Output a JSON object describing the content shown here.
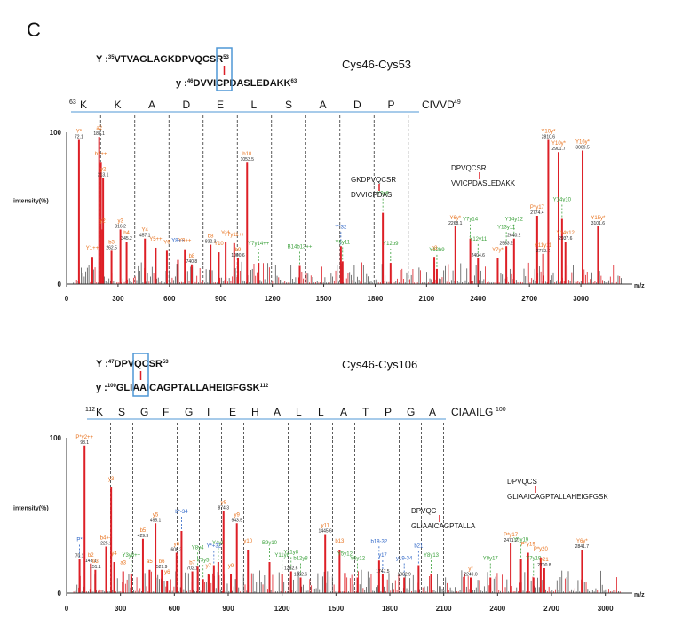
{
  "panel_letter": "C",
  "colors": {
    "red": "#dd1f26",
    "black": "#222222",
    "orange": "#e8731f",
    "blue": "#2c64c6",
    "green": "#3aa03a",
    "axis": "#333333",
    "sequence_line": "#4f97d6"
  },
  "chart_data": [
    {
      "type": "bar",
      "title": "Cys46-Cys53",
      "xlabel": "m/z",
      "ylabel": "intensity(%)",
      "xlim": [
        0,
        3300
      ],
      "ylim": [
        0,
        100
      ],
      "xticks": [
        "0",
        "300",
        "600",
        "900",
        "1200",
        "1500",
        "1800",
        "2100",
        "2400",
        "2700",
        "3000"
      ],
      "yticks": [
        "0",
        "100"
      ],
      "peptide_Y": {
        "label": "Y :",
        "start": "35",
        "sequence": "VTVAGLAGKDPVQCSR",
        "end": "53"
      },
      "peptide_y": {
        "label": "y :",
        "start": "46",
        "sequence": "DVVICPDASLEDAKK",
        "end": "63"
      },
      "ladder": {
        "start": "63",
        "residues": [
          "K",
          "K",
          "A",
          "D",
          "E",
          "L",
          "S",
          "A",
          "D",
          "P",
          "CIVVD"
        ],
        "end": "49"
      },
      "fragment_insets": [
        {
          "lines": [
            "GKDPVQCSR",
            "DVVICPDAS"
          ]
        },
        {
          "lines": [
            "DPVQCSR",
            "VVICPDASLEDAKK"
          ]
        }
      ],
      "annotated_peaks": [
        {
          "mz": 72,
          "intensity": 95,
          "label": "Y*",
          "value": "72.1",
          "color": "orange"
        },
        {
          "mz": 150,
          "intensity": 18,
          "label": "Y1++",
          "value": "",
          "color": "orange"
        },
        {
          "mz": 190,
          "intensity": 97,
          "label": "a2",
          "value": "187.1",
          "color": "orange"
        },
        {
          "mz": 200,
          "intensity": 80,
          "label": "b2++",
          "value": "",
          "color": "orange"
        },
        {
          "mz": 213,
          "intensity": 70,
          "label": "y2",
          "value": "213.1",
          "color": "orange"
        },
        {
          "mz": 210,
          "intensity": 36,
          "label": "y2",
          "value": "",
          "color": "orange"
        },
        {
          "mz": 262,
          "intensity": 22,
          "label": "b3",
          "value": "262.5",
          "color": "orange"
        },
        {
          "mz": 314,
          "intensity": 36,
          "label": "y3",
          "value": "316.2",
          "color": "orange"
        },
        {
          "mz": 350,
          "intensity": 28,
          "label": "b4",
          "value": "345.2",
          "color": "orange"
        },
        {
          "mz": 457,
          "intensity": 30,
          "label": "Y4",
          "value": "457.1",
          "color": "orange"
        },
        {
          "mz": 520,
          "intensity": 24,
          "label": "Y5++",
          "value": "",
          "color": "orange"
        },
        {
          "mz": 585,
          "intensity": 22,
          "label": "Y6",
          "value": "",
          "color": "orange"
        },
        {
          "mz": 650,
          "intensity": 16,
          "label": "Y8++",
          "value": "",
          "color": "blue"
        },
        {
          "mz": 690,
          "intensity": 23,
          "label": "Y9++",
          "value": "",
          "color": "orange"
        },
        {
          "mz": 730,
          "intensity": 13,
          "label": "b8",
          "value": "740.8",
          "color": "orange"
        },
        {
          "mz": 840,
          "intensity": 26,
          "label": "b8",
          "value": "832.3",
          "color": "orange"
        },
        {
          "mz": 888,
          "intensity": 21,
          "label": "Y10",
          "value": "",
          "color": "orange"
        },
        {
          "mz": 928,
          "intensity": 28,
          "label": "Y11",
          "value": "",
          "color": "orange"
        },
        {
          "mz": 978,
          "intensity": 27,
          "label": "Y7y11++",
          "value": "",
          "color": "orange"
        },
        {
          "mz": 1000,
          "intensity": 17,
          "label": "b9",
          "value": "1000.6",
          "color": "orange"
        },
        {
          "mz": 1053,
          "intensity": 80,
          "label": "b10",
          "value": "1053.5",
          "color": "orange"
        },
        {
          "mz": 1120,
          "intensity": 14,
          "label": "Y7y14++",
          "value": "",
          "color": "green"
        },
        {
          "mz": 1360,
          "intensity": 12,
          "label": "B14b13++",
          "value": "",
          "color": "green"
        },
        {
          "mz": 1600,
          "intensity": 25,
          "label": "Y*32",
          "value": "",
          "color": "blue"
        },
        {
          "mz": 1610,
          "intensity": 15,
          "label": "Y6y11",
          "value": "",
          "color": "green"
        },
        {
          "mz": 1845,
          "intensity": 47,
          "label": "Y9y6",
          "value": "",
          "color": "green"
        },
        {
          "mz": 1890,
          "intensity": 14,
          "label": "Y12b9",
          "value": "",
          "color": "green"
        },
        {
          "mz": 2145,
          "intensity": 18,
          "label": "b8",
          "value": "",
          "color": "orange"
        },
        {
          "mz": 2160,
          "intensity": 10,
          "label": "Y12b9",
          "value": "",
          "color": "green"
        },
        {
          "mz": 2268,
          "intensity": 38,
          "label": "Y6y*",
          "value": "2268.1",
          "color": "orange"
        },
        {
          "mz": 2355,
          "intensity": 30,
          "label": "Y7y14",
          "value": "",
          "color": "green"
        },
        {
          "mz": 2400,
          "intensity": 17,
          "label": "Y12y11",
          "value": "2404.6",
          "color": "green"
        },
        {
          "mz": 2515,
          "intensity": 17,
          "label": "Y7y*",
          "value": "",
          "color": "orange"
        },
        {
          "mz": 2565,
          "intensity": 25,
          "label": "Y13y11",
          "value": "2583.2",
          "color": "green"
        },
        {
          "mz": 2610,
          "intensity": 30,
          "label": "Y14y12",
          "value": "2640.2",
          "color": "green"
        },
        {
          "mz": 2745,
          "intensity": 45,
          "label": "P*y17",
          "value": "2774.4",
          "color": "orange"
        },
        {
          "mz": 2780,
          "intensity": 20,
          "label": "Y11y11",
          "value": "2773.2",
          "color": "orange"
        },
        {
          "mz": 2810,
          "intensity": 95,
          "label": "Y10y*",
          "value": "2810.6",
          "color": "orange"
        },
        {
          "mz": 2870,
          "intensity": 87,
          "label": "Y10y*",
          "value": "2901.7",
          "color": "orange"
        },
        {
          "mz": 2890,
          "intensity": 43,
          "label": "Y14y10",
          "value": "",
          "color": "green"
        },
        {
          "mz": 2910,
          "intensity": 28,
          "label": "Y14y12",
          "value": "2937.6",
          "color": "orange"
        },
        {
          "mz": 3010,
          "intensity": 88,
          "label": "Y16y*",
          "value": "3009.5",
          "color": "orange"
        },
        {
          "mz": 3100,
          "intensity": 38,
          "label": "Y15y*",
          "value": "3101.6",
          "color": "orange"
        }
      ]
    },
    {
      "type": "bar",
      "title": "Cys46-Cys106",
      "xlabel": "m/z",
      "ylabel": "intensity(%)",
      "xlim": [
        0,
        3150
      ],
      "ylim": [
        0,
        100
      ],
      "xticks": [
        "0",
        "300",
        "600",
        "900",
        "1200",
        "1500",
        "1800",
        "2100",
        "2400",
        "2700",
        "3000"
      ],
      "yticks": [
        "0",
        "100"
      ],
      "peptide_Y": {
        "label": "Y :",
        "start": "47",
        "sequence": "DPVQCSR",
        "end": "53"
      },
      "peptide_y": {
        "label": "y :",
        "start": "100",
        "sequence": "GLIAAICAGPTALLAHEIGFGSK",
        "end": "112"
      },
      "ladder": {
        "start": "112",
        "residues": [
          "K",
          "S",
          "G",
          "F",
          "G",
          "I",
          "E",
          "H",
          "A",
          "L",
          "L",
          "A",
          "T",
          "P",
          "G",
          "A",
          "CIAAILG"
        ],
        "end": "100"
      },
      "fragment_insets": [
        {
          "lines": [
            "DPVQC",
            "GLIAAICAGPTALLA"
          ]
        },
        {
          "lines": [
            "DPVQCS",
            "GLIAAICAGPTALLAHEIGFGSK"
          ]
        }
      ],
      "annotated_peaks": [
        {
          "mz": 72,
          "intensity": 22,
          "label": "P*",
          "value": "70.1",
          "color": "blue"
        },
        {
          "mz": 100,
          "intensity": 95,
          "label": "P*y2++",
          "value": "98.1",
          "color": "orange"
        },
        {
          "mz": 135,
          "intensity": 19,
          "label": "b2",
          "value": "143.1",
          "color": "orange"
        },
        {
          "mz": 160,
          "intensity": 15,
          "label": "b3",
          "value": "151.1",
          "color": "orange"
        },
        {
          "mz": 220,
          "intensity": 30,
          "label": "b4++",
          "value": "225.1",
          "color": "orange"
        },
        {
          "mz": 248,
          "intensity": 68,
          "label": "y3",
          "value": "",
          "color": "orange"
        },
        {
          "mz": 265,
          "intensity": 20,
          "label": "y4",
          "value": "",
          "color": "orange"
        },
        {
          "mz": 315,
          "intensity": 14,
          "label": "a3",
          "value": "",
          "color": "orange"
        },
        {
          "mz": 360,
          "intensity": 12,
          "label": "Y3y8++",
          "value": "",
          "color": "green"
        },
        {
          "mz": 425,
          "intensity": 35,
          "label": "b5",
          "value": "429.3",
          "color": "orange"
        },
        {
          "mz": 462,
          "intensity": 15,
          "label": "a5",
          "value": "",
          "color": "orange"
        },
        {
          "mz": 495,
          "intensity": 45,
          "label": "y5",
          "value": "495.1",
          "color": "orange"
        },
        {
          "mz": 530,
          "intensity": 15,
          "label": "b6",
          "value": "529.9",
          "color": "orange"
        },
        {
          "mz": 560,
          "intensity": 8,
          "label": "y6",
          "value": "",
          "color": "orange"
        },
        {
          "mz": 612,
          "intensity": 26,
          "label": "y6",
          "value": "606.3",
          "color": "orange"
        },
        {
          "mz": 640,
          "intensity": 40,
          "label": "b*-34",
          "value": "",
          "color": "blue"
        },
        {
          "mz": 700,
          "intensity": 14,
          "label": "b7",
          "value": "702.1",
          "color": "orange"
        },
        {
          "mz": 730,
          "intensity": 17,
          "label": "Y8y4",
          "value": "",
          "color": "green"
        },
        {
          "mz": 760,
          "intensity": 9,
          "label": "Y3y5",
          "value": "",
          "color": "green"
        },
        {
          "mz": 790,
          "intensity": 12,
          "label": "y7",
          "value": "",
          "color": "orange"
        },
        {
          "mz": 820,
          "intensity": 18,
          "label": "Y*+32",
          "value": "",
          "color": "blue"
        },
        {
          "mz": 845,
          "intensity": 20,
          "label": "Y4y8",
          "value": "",
          "color": "green"
        },
        {
          "mz": 874,
          "intensity": 53,
          "label": "y8",
          "value": "874.3",
          "color": "orange"
        },
        {
          "mz": 915,
          "intensity": 12,
          "label": "y9",
          "value": "",
          "color": "orange"
        },
        {
          "mz": 948,
          "intensity": 45,
          "label": "y9",
          "value": "943.5",
          "color": "orange"
        },
        {
          "mz": 1010,
          "intensity": 28,
          "label": "y10",
          "value": "",
          "color": "orange"
        },
        {
          "mz": 1130,
          "intensity": 20,
          "label": "B9y10",
          "value": "",
          "color": "green"
        },
        {
          "mz": 1200,
          "intensity": 12,
          "label": "Y11y8",
          "value": "",
          "color": "green"
        },
        {
          "mz": 1250,
          "intensity": 14,
          "label": "Y11y8",
          "value": "1282.6",
          "color": "green"
        },
        {
          "mz": 1303,
          "intensity": 10,
          "label": "b12y8",
          "value": "1302.6",
          "color": "green"
        },
        {
          "mz": 1440,
          "intensity": 38,
          "label": "y11",
          "value": "1445.6",
          "color": "orange"
        },
        {
          "mz": 1520,
          "intensity": 28,
          "label": "b13",
          "value": "",
          "color": "orange"
        },
        {
          "mz": 1550,
          "intensity": 13,
          "label": "Y5y12",
          "value": "",
          "color": "green"
        },
        {
          "mz": 1620,
          "intensity": 10,
          "label": "Y6y12",
          "value": "",
          "color": "green"
        },
        {
          "mz": 1740,
          "intensity": 21,
          "label": "b18-32",
          "value": "",
          "color": "blue"
        },
        {
          "mz": 1760,
          "intensity": 12,
          "label": "y17",
          "value": "1747.5",
          "color": "blue"
        },
        {
          "mz": 1880,
          "intensity": 10,
          "label": "y19-34",
          "value": "1882.9",
          "color": "blue"
        },
        {
          "mz": 1960,
          "intensity": 18,
          "label": "b21",
          "value": "",
          "color": "blue"
        },
        {
          "mz": 2030,
          "intensity": 12,
          "label": "Y8y13",
          "value": "",
          "color": "green"
        },
        {
          "mz": 2250,
          "intensity": 10,
          "label": "y*",
          "value": "2249.0",
          "color": "orange"
        },
        {
          "mz": 2360,
          "intensity": 10,
          "label": "Y8y17",
          "value": "",
          "color": "green"
        },
        {
          "mz": 2473,
          "intensity": 32,
          "label": "P*y17",
          "value": "2471.2",
          "color": "orange"
        },
        {
          "mz": 2530,
          "intensity": 22,
          "label": "Y5y19",
          "value": "",
          "color": "green"
        },
        {
          "mz": 2570,
          "intensity": 26,
          "label": "P*y19",
          "value": "",
          "color": "orange"
        },
        {
          "mz": 2600,
          "intensity": 10,
          "label": "Y7y19",
          "value": "",
          "color": "green"
        },
        {
          "mz": 2640,
          "intensity": 23,
          "label": "P*y20",
          "value": "",
          "color": "orange"
        },
        {
          "mz": 2660,
          "intensity": 16,
          "label": "y21",
          "value": "2700.8",
          "color": "orange"
        },
        {
          "mz": 2870,
          "intensity": 28,
          "label": "Y6y*",
          "value": "2841.7",
          "color": "orange"
        }
      ]
    }
  ]
}
